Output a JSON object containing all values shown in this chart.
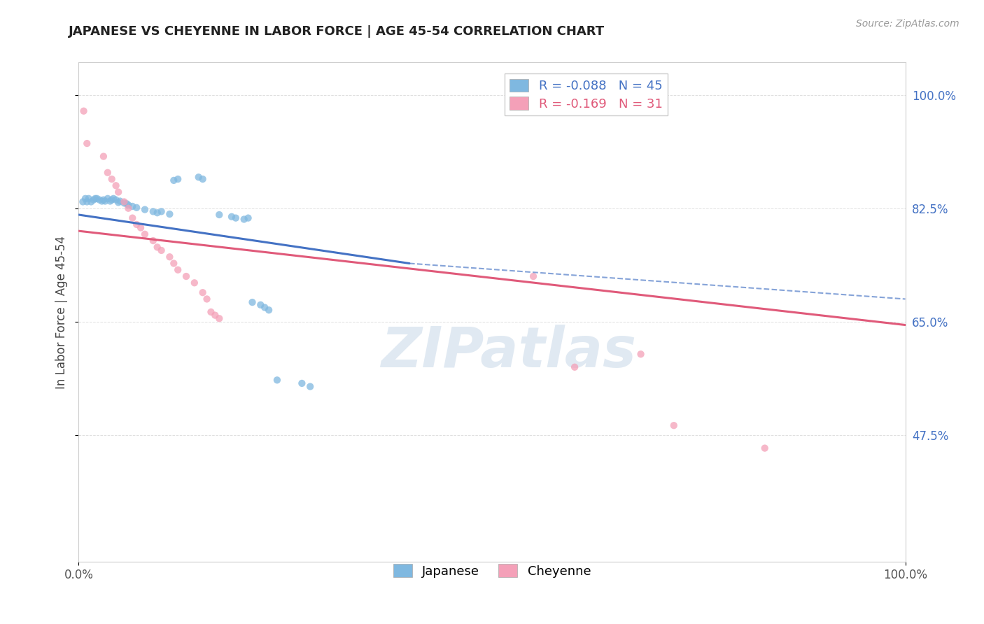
{
  "title": "JAPANESE VS CHEYENNE IN LABOR FORCE | AGE 45-54 CORRELATION CHART",
  "source_text": "Source: ZipAtlas.com",
  "ylabel": "In Labor Force | Age 45-54",
  "xlim": [
    0.0,
    1.0
  ],
  "ylim": [
    0.28,
    1.05
  ],
  "ytick_positions": [
    0.475,
    0.65,
    0.825,
    1.0
  ],
  "ytick_labels": [
    "47.5%",
    "65.0%",
    "82.5%",
    "100.0%"
  ],
  "japanese_R": -0.088,
  "japanese_N": 45,
  "cheyenne_R": -0.169,
  "cheyenne_N": 31,
  "japanese_color": "#7fb8e0",
  "cheyenne_color": "#f4a0b8",
  "japanese_line_color": "#4472c4",
  "cheyenne_line_color": "#e05a7a",
  "japanese_scatter": [
    [
      0.005,
      0.835
    ],
    [
      0.008,
      0.84
    ],
    [
      0.01,
      0.835
    ],
    [
      0.012,
      0.84
    ],
    [
      0.015,
      0.835
    ],
    [
      0.018,
      0.838
    ],
    [
      0.02,
      0.84
    ],
    [
      0.022,
      0.84
    ],
    [
      0.025,
      0.838
    ],
    [
      0.028,
      0.836
    ],
    [
      0.03,
      0.838
    ],
    [
      0.032,
      0.836
    ],
    [
      0.035,
      0.84
    ],
    [
      0.038,
      0.836
    ],
    [
      0.04,
      0.838
    ],
    [
      0.042,
      0.84
    ],
    [
      0.045,
      0.838
    ],
    [
      0.048,
      0.834
    ],
    [
      0.05,
      0.836
    ],
    [
      0.055,
      0.833
    ],
    [
      0.058,
      0.832
    ],
    [
      0.06,
      0.83
    ],
    [
      0.065,
      0.828
    ],
    [
      0.07,
      0.826
    ],
    [
      0.08,
      0.823
    ],
    [
      0.09,
      0.82
    ],
    [
      0.095,
      0.818
    ],
    [
      0.1,
      0.82
    ],
    [
      0.11,
      0.816
    ],
    [
      0.115,
      0.868
    ],
    [
      0.12,
      0.87
    ],
    [
      0.145,
      0.873
    ],
    [
      0.15,
      0.87
    ],
    [
      0.17,
      0.815
    ],
    [
      0.185,
      0.812
    ],
    [
      0.19,
      0.81
    ],
    [
      0.2,
      0.808
    ],
    [
      0.205,
      0.81
    ],
    [
      0.21,
      0.68
    ],
    [
      0.22,
      0.676
    ],
    [
      0.225,
      0.672
    ],
    [
      0.23,
      0.668
    ],
    [
      0.24,
      0.56
    ],
    [
      0.27,
      0.555
    ],
    [
      0.28,
      0.55
    ]
  ],
  "cheyenne_scatter": [
    [
      0.006,
      0.975
    ],
    [
      0.01,
      0.925
    ],
    [
      0.03,
      0.905
    ],
    [
      0.035,
      0.88
    ],
    [
      0.04,
      0.87
    ],
    [
      0.045,
      0.86
    ],
    [
      0.048,
      0.85
    ],
    [
      0.055,
      0.835
    ],
    [
      0.06,
      0.825
    ],
    [
      0.065,
      0.81
    ],
    [
      0.07,
      0.8
    ],
    [
      0.075,
      0.795
    ],
    [
      0.08,
      0.785
    ],
    [
      0.09,
      0.775
    ],
    [
      0.095,
      0.765
    ],
    [
      0.1,
      0.76
    ],
    [
      0.11,
      0.75
    ],
    [
      0.115,
      0.74
    ],
    [
      0.12,
      0.73
    ],
    [
      0.13,
      0.72
    ],
    [
      0.14,
      0.71
    ],
    [
      0.15,
      0.695
    ],
    [
      0.155,
      0.685
    ],
    [
      0.16,
      0.665
    ],
    [
      0.165,
      0.66
    ],
    [
      0.17,
      0.655
    ],
    [
      0.55,
      0.72
    ],
    [
      0.6,
      0.58
    ],
    [
      0.68,
      0.6
    ],
    [
      0.72,
      0.49
    ],
    [
      0.83,
      0.455
    ]
  ],
  "watermark_text": "ZIPatlas",
  "background_color": "#ffffff",
  "grid_color": "#e0e0e0",
  "title_color": "#222222",
  "axis_label_color": "#444444",
  "right_tick_color": "#4472c4",
  "tick_color": "#555555"
}
